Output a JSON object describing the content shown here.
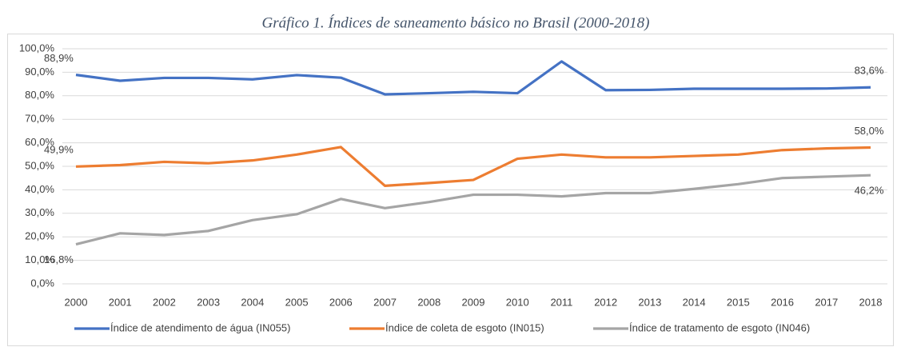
{
  "chart_data": {
    "type": "line",
    "title": "Gráfico 1. Índices de saneamento básico no Brasil (2000-2018)",
    "categories": [
      "2000",
      "2001",
      "2002",
      "2003",
      "2004",
      "2005",
      "2006",
      "2007",
      "2008",
      "2009",
      "2010",
      "2011",
      "2012",
      "2013",
      "2014",
      "2015",
      "2016",
      "2017",
      "2018"
    ],
    "ylim": [
      0,
      100
    ],
    "yticks": [
      {
        "value": 0,
        "label": "0,0%"
      },
      {
        "value": 10,
        "label": "10,0%"
      },
      {
        "value": 20,
        "label": "20,0%"
      },
      {
        "value": 30,
        "label": "30,0%"
      },
      {
        "value": 40,
        "label": "40,0%"
      },
      {
        "value": 50,
        "label": "50,0%"
      },
      {
        "value": 60,
        "label": "60,0%"
      },
      {
        "value": 70,
        "label": "70,0%"
      },
      {
        "value": 80,
        "label": "80,0%"
      },
      {
        "value": 90,
        "label": "90,0%"
      },
      {
        "value": 100,
        "label": "100,0%"
      }
    ],
    "grid": true,
    "legend": "bottom",
    "series": [
      {
        "name": "Índice de atendimento de água (IN055)",
        "color": "#4472c4",
        "values": [
          88.9,
          86.4,
          87.6,
          87.6,
          87.0,
          88.8,
          87.7,
          80.6,
          81.1,
          81.7,
          81.1,
          94.6,
          82.4,
          82.5,
          83.0,
          83.0,
          83.0,
          83.1,
          83.6
        ],
        "value_labels": [
          "88,9%",
          null,
          null,
          null,
          null,
          null,
          null,
          null,
          null,
          null,
          null,
          null,
          null,
          null,
          null,
          null,
          null,
          null,
          "83,6%"
        ]
      },
      {
        "name": "Índice de coleta de esgoto (IN015)",
        "color": "#ed7d31",
        "values": [
          49.9,
          50.5,
          51.9,
          51.3,
          52.5,
          55.0,
          58.2,
          41.7,
          42.9,
          44.2,
          53.2,
          55.0,
          53.8,
          53.8,
          54.4,
          55.0,
          56.9,
          57.6,
          58.0
        ],
        "value_labels": [
          "49,9%",
          null,
          null,
          null,
          null,
          null,
          null,
          null,
          null,
          null,
          null,
          null,
          null,
          null,
          null,
          null,
          null,
          null,
          "58,0%"
        ]
      },
      {
        "name": "Índice de tratamento de esgoto (IN046)",
        "color": "#a5a5a5",
        "values": [
          16.8,
          21.5,
          20.8,
          22.5,
          27.1,
          29.6,
          36.1,
          32.2,
          34.8,
          37.9,
          37.9,
          37.2,
          38.6,
          38.6,
          40.4,
          42.4,
          45.0,
          45.6,
          46.2
        ],
        "value_labels": [
          "16,8%",
          null,
          null,
          null,
          null,
          null,
          null,
          null,
          null,
          null,
          null,
          null,
          null,
          null,
          null,
          null,
          null,
          null,
          "46,2%"
        ]
      }
    ]
  }
}
